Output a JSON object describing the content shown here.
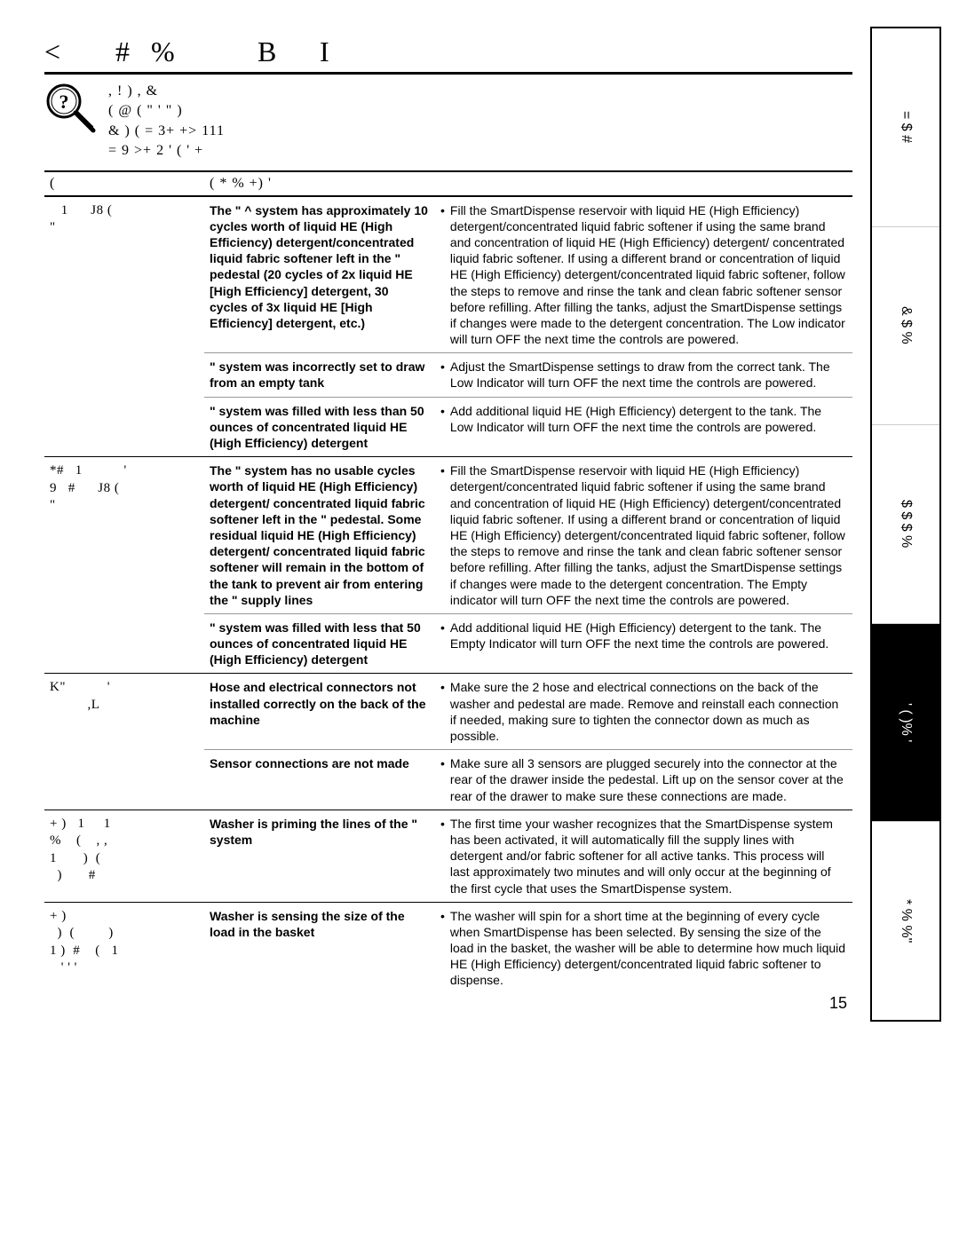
{
  "page_number": "15",
  "title_chars": [
    "<",
    "#",
    "%",
    "B",
    "I"
  ],
  "intro_lines": [
    ",   !      ) , &",
    "(          @   ( \"    '             \" )",
    "& )    (          =   3+ +> 111",
    "=   9   >+ 2            '       ( ' +"
  ],
  "header": {
    "problem": "(",
    "cause": "(  * %                   +)   '",
    "todo": ""
  },
  "sidebar": [
    {
      "label": "=    $ #",
      "active": false
    },
    {
      "label": "&    $  %",
      "active": false
    },
    {
      "label": "$ $  $ %",
      "active": false
    },
    {
      "label": "'   ( )%   '",
      "active": true
    },
    {
      "label": "*   %   %\"",
      "active": false
    }
  ],
  "rows": [
    {
      "problem": "   1      J8 (\n\"",
      "groups": [
        {
          "cause": "The \"                   ^ system has approximately 10 cycles worth of liquid HE (High Efficiency) detergent/concentrated liquid fabric softener left in the \"                    pedestal (20 cycles of 2x liquid HE [High Efficiency] detergent, 30 cycles of 3x liquid HE [High Efficiency] detergent, etc.)",
          "todo": "Fill the SmartDispense reservoir with liquid HE (High Efficiency) detergent/concentrated liquid fabric softener if using the same brand and concentration of liquid HE (High Efficiency) detergent/ concentrated liquid fabric softener. If using a different brand or concentration of liquid HE (High Efficiency) detergent/concentrated liquid fabric softener, follow the steps to remove and rinse the tank and clean fabric softener sensor before refilling. After filling the tanks, adjust the SmartDispense settings if changes were made to the detergent concentration. The Low indicator will turn OFF the next time the controls are powered."
        },
        {
          "cause": "\"                     system was incorrectly set to draw from an empty tank",
          "todo": "Adjust the SmartDispense settings to draw from the correct tank. The Low Indicator will turn OFF the next time the controls are powered."
        },
        {
          "cause": "\"                     system was filled with less than 50 ounces of concentrated liquid HE (High Efficiency) detergent",
          "todo": "Add additional liquid HE (High Efficiency) detergent to the tank. The Low Indicator will turn OFF the next time the controls are powered."
        }
      ]
    },
    {
      "problem": "*#   1           '\n9   #      J8 (\n\"",
      "groups": [
        {
          "cause": "The \"                     system has no usable cycles worth of liquid HE (High Efficiency) detergent/ concentrated liquid fabric softener left in the \"                  pedestal. Some residual liquid HE (High Efficiency) detergent/ concentrated liquid fabric softener will remain in the bottom of the tank to prevent air from entering the \" supply lines",
          "todo": "Fill the SmartDispense reservoir with liquid HE (High Efficiency) detergent/concentrated liquid fabric softener if using the same brand and concentration of liquid HE (High Efficiency) detergent/concentrated liquid fabric softener. If using a different brand or concentration of liquid HE (High Efficiency) detergent/concentrated liquid fabric softener, follow the steps to remove and rinse the tank and clean fabric softener sensor before refilling. After filling the tanks, adjust the SmartDispense settings if changes were made to the detergent concentration. The Empty indicator will turn OFF the next time the controls are powered."
        },
        {
          "cause": "\"                     system was filled with less that 50 ounces of concentrated liquid HE (High Efficiency) detergent",
          "todo": "Add additional liquid HE (High Efficiency) detergent to the tank. The Empty Indicator will turn OFF the next time the controls are powered."
        }
      ]
    },
    {
      "problem": "K\"           '\n          ,L",
      "groups": [
        {
          "cause": "Hose and electrical connectors not installed correctly on the back of the machine",
          "todo": "Make sure the 2 hose and electrical connections on the back of the washer and pedestal are made. Remove and reinstall each connection if needed, making sure to tighten the connector down as much as possible."
        },
        {
          "cause": "Sensor connections are not made",
          "todo": "Make sure all 3 sensors are plugged securely into the connector at the rear of the drawer inside the pedestal. Lift up on the sensor cover at the rear of the drawer to make sure these connections are made."
        }
      ]
    },
    {
      "problem": "+ )   1     1\n%    (    , ,\n1       )  (\n  )       #",
      "groups": [
        {
          "cause": "Washer is priming the lines of the \"                     system",
          "todo": "The first time your washer recognizes that the SmartDispense system has been activated, it will automatically fill the supply lines with detergent and/or fabric softener for all active tanks. This process will last approximately two minutes and will only occur at the beginning of the first cycle that uses the SmartDispense system."
        }
      ]
    },
    {
      "problem": "+ )\n  )  (         )\n1 )  #    (   1\n   ' ' '",
      "groups": [
        {
          "cause": "Washer is sensing the size of the load in the basket",
          "todo": "The washer will spin for a short time at the beginning of every cycle when SmartDispense has been selected. By sensing the size of the load in the basket, the washer will be able to determine how much liquid HE (High Efficiency) detergent/concentrated liquid fabric softener to dispense."
        }
      ]
    }
  ]
}
